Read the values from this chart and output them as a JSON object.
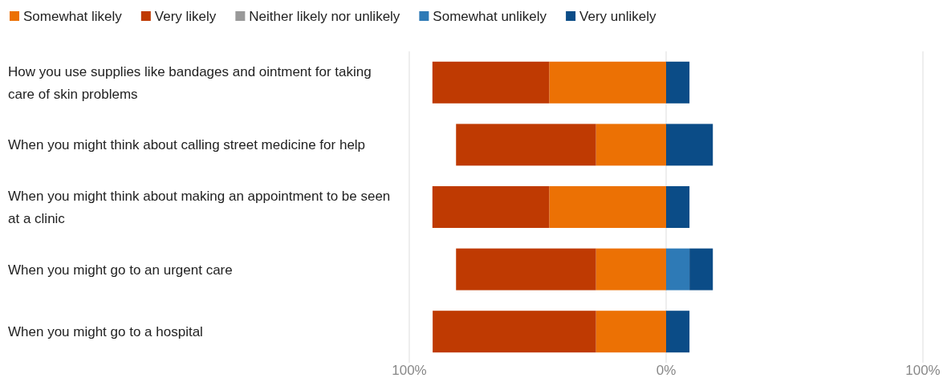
{
  "chart_data": {
    "type": "bar",
    "orientation": "horizontal",
    "stacked": true,
    "categories": [
      "How you use supplies like bandages and ointment for taking care of skin problems",
      "When you might think about calling street medicine for help",
      "When you might think about making an appointment to be seen at a clinic",
      "When you might go to an urgent care",
      "When you might go to a hospital"
    ],
    "series": [
      {
        "name": "Somewhat likely",
        "color": "#ec7104",
        "values": [
          -45.5,
          -27.3,
          -45.5,
          -27.3,
          -27.3
        ]
      },
      {
        "name": "Very likely",
        "color": "#bf3a02",
        "values": [
          -45.5,
          -54.5,
          -45.5,
          -54.5,
          -63.6
        ]
      },
      {
        "name": "Neither likely nor unlikely",
        "color": "#999999",
        "values": [
          0,
          0,
          0,
          0,
          0
        ]
      },
      {
        "name": "Somewhat unlikely",
        "color": "#2e7ab6",
        "values": [
          0,
          0,
          0,
          9.1,
          0
        ]
      },
      {
        "name": "Very unlikely",
        "color": "#0b4c87",
        "values": [
          9.1,
          18.2,
          9.1,
          9.1,
          9.1
        ]
      }
    ],
    "xlim": [
      -100,
      100
    ],
    "xticks": [
      {
        "value": -100,
        "label": "100%"
      },
      {
        "value": 0,
        "label": "0%"
      },
      {
        "value": 100,
        "label": "100%"
      }
    ],
    "grid": "x",
    "legend": "top"
  }
}
